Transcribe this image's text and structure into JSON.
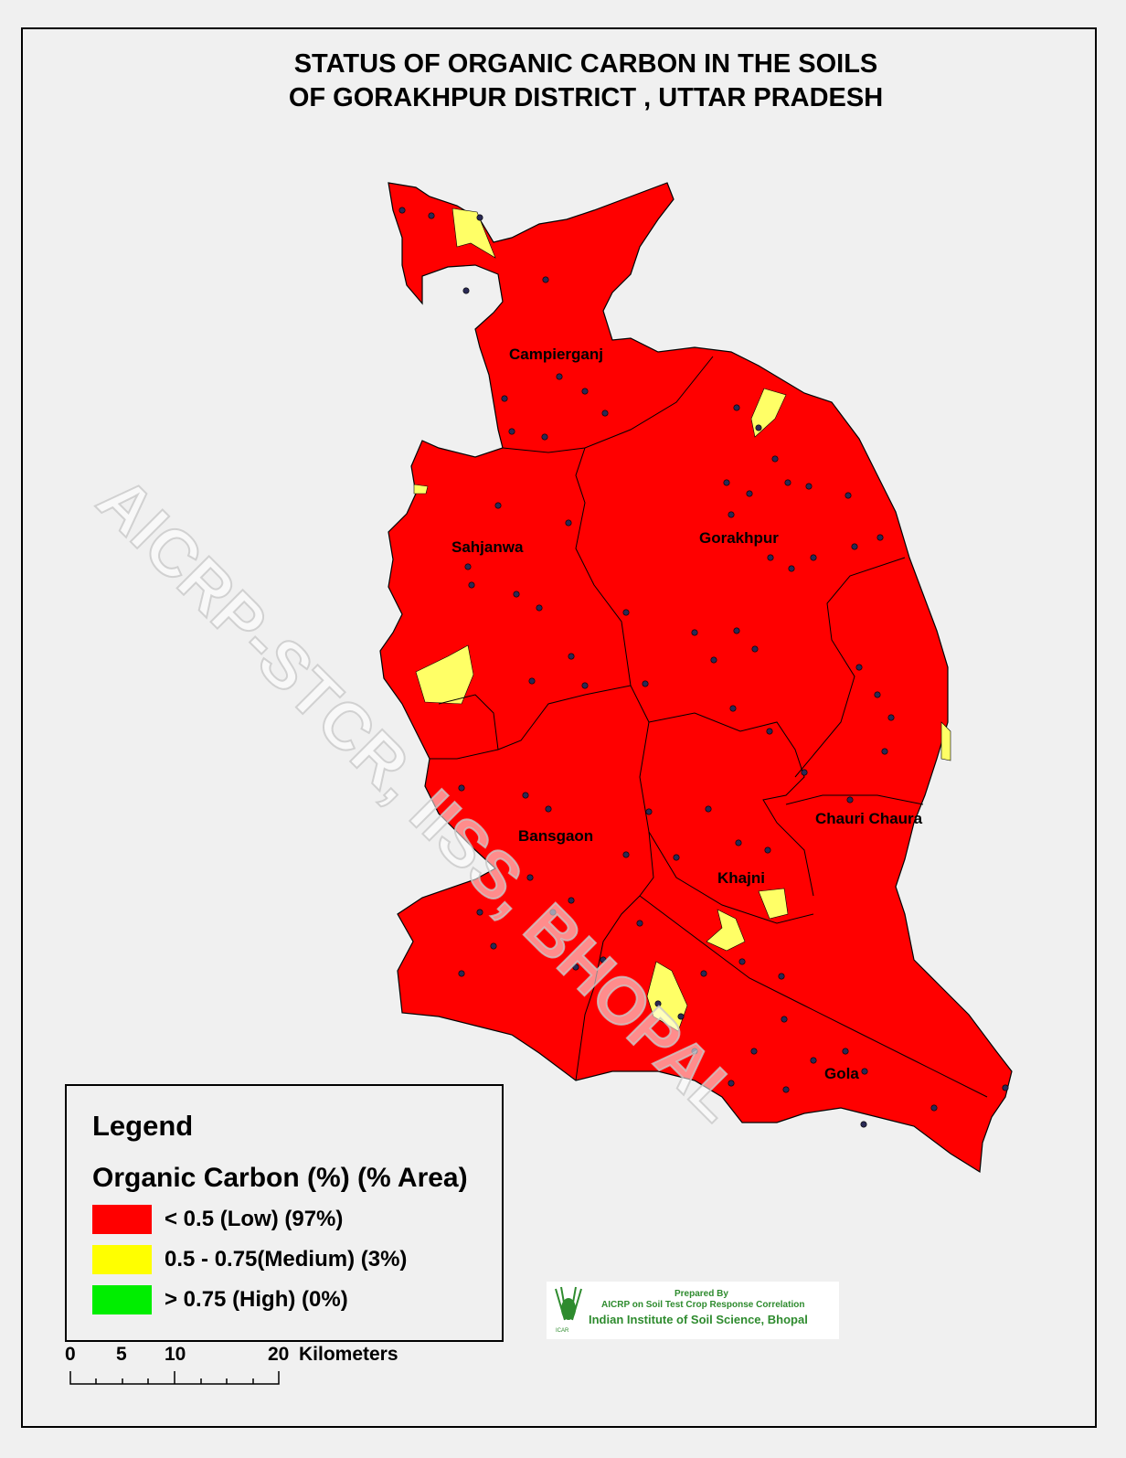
{
  "title_lines": [
    "STATUS OF ORGANIC CARBON IN THE SOILS",
    "OF GORAKHPUR DISTRICT , UTTAR PRADESH"
  ],
  "places": [
    "Campierganj",
    "Sahjanwa",
    "Gorakhpur",
    "Chauri Chaura",
    "Bansgaon",
    "Khajni",
    "Gola"
  ],
  "watermark": "AICRP-STCR, IISS, BHOPAL",
  "legend": {
    "title": "Legend",
    "subtitle": "Organic Carbon (%) (% Area)",
    "items": [
      {
        "label": "< 0.5 (Low) (97%)",
        "color": "#ff0000"
      },
      {
        "label": "0.5 - 0.75(Medium) (3%)",
        "color": "#ffff00"
      },
      {
        "label": "> 0.75 (High) (0%)",
        "color": "#00ee00"
      }
    ]
  },
  "scale_bar": {
    "ticks": [
      "0",
      "5",
      "10",
      "20"
    ],
    "unit": "Kilometers"
  },
  "credit": {
    "line1": "Prepared By",
    "line2": "AICRP on Soil Test Crop Response Correlation",
    "line3": "Indian Institute of Soil Science, Bhopal",
    "logo_text": "ICAR"
  }
}
